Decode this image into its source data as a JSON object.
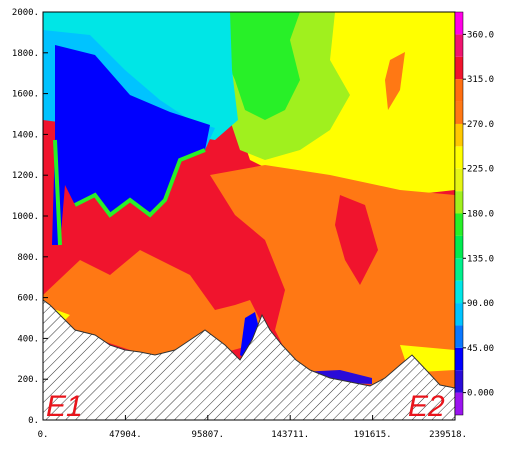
{
  "chart_data": {
    "type": "heatmap",
    "title": "",
    "xlabel": "",
    "ylabel": "",
    "xlim": [
      0,
      239518
    ],
    "ylim": [
      0,
      2000
    ],
    "x_tick_labels": [
      "0.",
      "47904.",
      "95807.",
      "143711.",
      "191615.",
      "239518."
    ],
    "x_tick_values": [
      0,
      47904,
      95807,
      143711,
      191615,
      239518
    ],
    "y_tick_labels": [
      "0.",
      "200.",
      "400.",
      "600.",
      "800.",
      "1000.",
      "1200.",
      "1400.",
      "1600.",
      "1800.",
      "2000."
    ],
    "y_tick_values": [
      0,
      200,
      400,
      600,
      800,
      1000,
      1200,
      1400,
      1600,
      1800,
      2000
    ],
    "colorbar": {
      "labels": [
        "0.000",
        "45.00",
        "90.00",
        "135.0",
        "180.0",
        "225.0",
        "270.0",
        "315.0",
        "360.0"
      ],
      "bands": [
        {
          "from": -22.5,
          "to": 0,
          "color": "#9b14f0"
        },
        {
          "from": 0,
          "to": 22.5,
          "color": "#2a0bd8"
        },
        {
          "from": 22.5,
          "to": 45,
          "color": "#0000ff"
        },
        {
          "from": 45,
          "to": 67.5,
          "color": "#0a78ff"
        },
        {
          "from": 67.5,
          "to": 90,
          "color": "#00c3ff"
        },
        {
          "from": 90,
          "to": 112.5,
          "color": "#00e6e6"
        },
        {
          "from": 112.5,
          "to": 135,
          "color": "#00f08c"
        },
        {
          "from": 135,
          "to": 157.5,
          "color": "#00eb50"
        },
        {
          "from": 157.5,
          "to": 180,
          "color": "#28f028"
        },
        {
          "from": 180,
          "to": 202.5,
          "color": "#a0f01e"
        },
        {
          "from": 202.5,
          "to": 225,
          "color": "#e6f514"
        },
        {
          "from": 225,
          "to": 247.5,
          "color": "#ffff00"
        },
        {
          "from": 247.5,
          "to": 270,
          "color": "#ffc800"
        },
        {
          "from": 270,
          "to": 292.5,
          "color": "#ff7814"
        },
        {
          "from": 292.5,
          "to": 315,
          "color": "#ff6e10"
        },
        {
          "from": 315,
          "to": 337.5,
          "color": "#f0142d"
        },
        {
          "from": 337.5,
          "to": 360,
          "color": "#f01470"
        },
        {
          "from": 360,
          "to": 382.5,
          "color": "#ff00e6"
        }
      ]
    },
    "terrain_pattern": "hatched",
    "endpoint_labels": [
      "E1",
      "E2"
    ],
    "region_colors": {
      "red": "#f0142d",
      "orange": "#ff7814",
      "yellow": "#ffff00",
      "lime": "#a0f01e",
      "green": "#28f028",
      "cyan": "#00e6e6",
      "sky": "#00c3ff",
      "blue": "#0000ff",
      "deep_blue": "#2a0bd8"
    }
  }
}
